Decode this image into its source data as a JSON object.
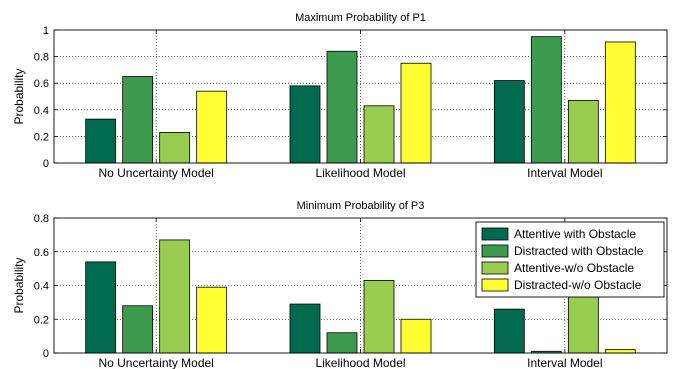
{
  "chart_data": [
    {
      "type": "bar",
      "title": "Maximum Probability of P1",
      "xlabel": "",
      "ylabel": "Probability",
      "categories": [
        "No Uncertainty Model",
        "Likelihood Model",
        "Interval Model"
      ],
      "ylim": [
        0,
        1
      ],
      "yticks": [
        "0",
        "0.2",
        "0.4",
        "0.6",
        "0.8",
        "1"
      ],
      "grid": true,
      "series": [
        {
          "name": "Attentive with Obstacle",
          "values": [
            0.33,
            0.58,
            0.62
          ]
        },
        {
          "name": "Distracted with Obstacle",
          "values": [
            0.65,
            0.84,
            0.95
          ]
        },
        {
          "name": "Attentive-w/o Obstacle",
          "values": [
            0.23,
            0.43,
            0.47
          ]
        },
        {
          "name": "Distracted-w/o Obstacle",
          "values": [
            0.54,
            0.75,
            0.91
          ]
        }
      ]
    },
    {
      "type": "bar",
      "title": "Minimum Probability of P3",
      "xlabel": "",
      "ylabel": "Probability",
      "categories": [
        "No Uncertainty Model",
        "Likelihood Model",
        "Interval Model"
      ],
      "ylim": [
        0,
        0.8
      ],
      "yticks": [
        "0",
        "0.2",
        "0.4",
        "0.6",
        "0.8"
      ],
      "grid": true,
      "legend_position": "top-right",
      "series": [
        {
          "name": "Attentive with Obstacle",
          "values": [
            0.54,
            0.29,
            0.26
          ]
        },
        {
          "name": "Distracted with Obstacle",
          "values": [
            0.28,
            0.12,
            0.01
          ]
        },
        {
          "name": "Attentive-w/o Obstacle",
          "values": [
            0.67,
            0.43,
            0.37
          ]
        },
        {
          "name": "Distracted-w/o Obstacle",
          "values": [
            0.39,
            0.2,
            0.02
          ]
        }
      ]
    }
  ],
  "colors": [
    "#006a4e",
    "#3d9b50",
    "#99cc4f",
    "#ffff33"
  ]
}
